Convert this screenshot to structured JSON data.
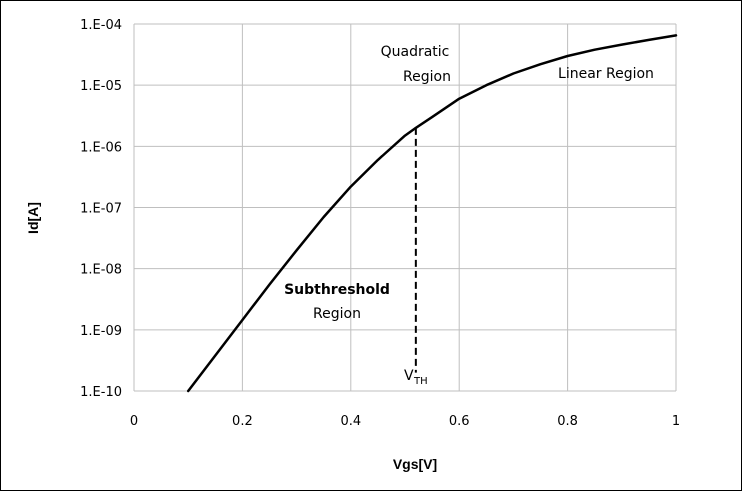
{
  "chart_data": {
    "type": "line",
    "xlabel": "Vgs[V]",
    "ylabel": "Id[A]",
    "xlim": [
      0,
      1
    ],
    "x_ticks": [
      0,
      0.2,
      0.4,
      0.6,
      0.8,
      1
    ],
    "x_tick_labels": [
      "0",
      "0.2",
      "0.4",
      "0.6",
      "0.8",
      "1"
    ],
    "y_scale": "log",
    "ylim": [
      1e-10,
      0.0001
    ],
    "y_ticks": [
      1e-10,
      1e-09,
      1e-08,
      1e-07,
      1e-06,
      1e-05,
      0.0001
    ],
    "y_tick_labels": [
      "1.E-10",
      "1.E-09",
      "1.E-08",
      "1.E-07",
      "1.E-06",
      "1.E-05",
      "1.E-04"
    ],
    "grid": true,
    "legend": "none",
    "series": [
      {
        "x": [
          0.1,
          0.15,
          0.2,
          0.25,
          0.3,
          0.35,
          0.4,
          0.45,
          0.5,
          0.52,
          0.55,
          0.6,
          0.65,
          0.7,
          0.75,
          0.8,
          0.85,
          0.9,
          0.95,
          1.0
        ],
        "y": [
          1e-10,
          3.8e-10,
          1.45e-09,
          5.5e-09,
          2e-08,
          7e-08,
          2.2e-07,
          6e-07,
          1.5e-06,
          2e-06,
          3e-06,
          6e-06,
          1e-05,
          1.55e-05,
          2.2e-05,
          3e-05,
          3.8e-05,
          4.6e-05,
          5.5e-05,
          6.5e-05
        ]
      }
    ],
    "vth_marker": {
      "x": 0.52,
      "y_top": 2e-06,
      "y_bottom": 2e-10
    },
    "annotations": {
      "quadratic": [
        "Quadratic",
        "Region"
      ],
      "linear": "Linear Region",
      "subthreshold": [
        "Subthreshold",
        "Region"
      ],
      "vth_main": "V",
      "vth_sub": "TH"
    }
  }
}
